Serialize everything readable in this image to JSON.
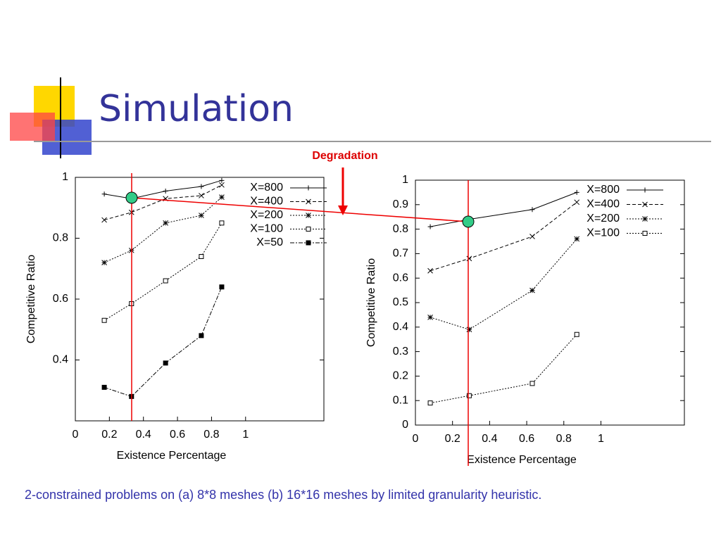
{
  "title": "Simulation",
  "annotation": "Degradation",
  "caption": "2-constrained problems on (a) 8*8 meshes (b) 16*16 meshes by limited granularity heuristic.",
  "chart_data": [
    {
      "type": "line",
      "x_label": "Existence Percentage",
      "y_label": "Competitive Ratio",
      "x": [
        0.17,
        0.33,
        0.53,
        0.74,
        0.86
      ],
      "xlim": [
        0,
        1.46
      ],
      "xticks": [
        0,
        0.2,
        0.4,
        0.6,
        0.8,
        1
      ],
      "ylim": [
        0.2,
        1
      ],
      "yticks": [
        0.4,
        0.6,
        0.8,
        1
      ],
      "legend": "upper right",
      "series": [
        {
          "name": "X=800",
          "color": "#000000",
          "marker": "plus",
          "dash": "solid",
          "values": [
            0.945,
            0.93,
            0.955,
            0.97,
            0.99
          ]
        },
        {
          "name": "X=400",
          "color": "#000000",
          "marker": "cross",
          "dash": "dashed",
          "values": [
            0.86,
            0.885,
            0.93,
            0.94,
            0.975
          ]
        },
        {
          "name": "X=200",
          "color": "#000000",
          "marker": "star",
          "dash": "dotted",
          "values": [
            0.72,
            0.76,
            0.85,
            0.875,
            0.935
          ]
        },
        {
          "name": "X=100",
          "color": "#000000",
          "marker": "square",
          "dash": "dotted",
          "values": [
            0.53,
            0.585,
            0.66,
            0.74,
            0.85
          ]
        },
        {
          "name": "X=50",
          "color": "#000000",
          "marker": "filled-square",
          "dash": "dashdot",
          "values": [
            0.31,
            0.28,
            0.39,
            0.48,
            0.64
          ]
        }
      ]
    },
    {
      "type": "line",
      "x_label": "Existence Percentage",
      "y_label": "Competitive Ratio",
      "x": [
        0.08,
        0.29,
        0.63,
        0.87
      ],
      "xlim": [
        0,
        1.45
      ],
      "xticks": [
        0,
        0.2,
        0.4,
        0.6,
        0.8,
        1
      ],
      "ylim": [
        0,
        1
      ],
      "yticks": [
        0,
        0.1,
        0.2,
        0.3,
        0.4,
        0.5,
        0.6,
        0.7,
        0.8,
        0.9,
        1
      ],
      "legend": "upper right",
      "series": [
        {
          "name": "X=800",
          "color": "#000000",
          "marker": "plus",
          "dash": "solid",
          "values": [
            0.81,
            0.84,
            0.88,
            0.95
          ]
        },
        {
          "name": "X=400",
          "color": "#000000",
          "marker": "cross",
          "dash": "dashed",
          "values": [
            0.63,
            0.68,
            0.77,
            0.91
          ]
        },
        {
          "name": "X=200",
          "color": "#000000",
          "marker": "star",
          "dash": "dotted",
          "values": [
            0.44,
            0.39,
            0.55,
            0.76
          ]
        },
        {
          "name": "X=100",
          "color": "#000000",
          "marker": "square",
          "dash": "dotted",
          "values": [
            0.09,
            0.12,
            0.17,
            0.37
          ]
        }
      ]
    }
  ]
}
